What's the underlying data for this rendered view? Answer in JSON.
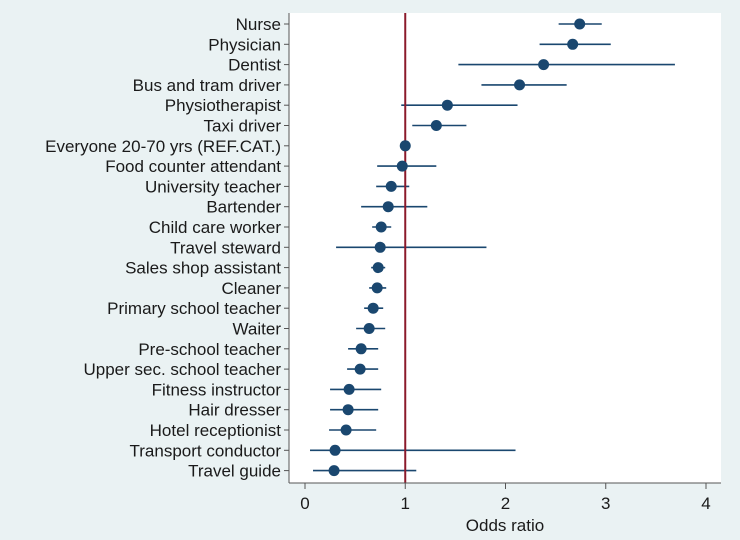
{
  "chart_data": {
    "type": "scatter",
    "subtype": "forest-plot-horizontal",
    "title": "",
    "xlabel": "Odds ratio",
    "ylabel": "",
    "xlim": [
      0,
      4
    ],
    "xticks": [
      0,
      1,
      2,
      3,
      4
    ],
    "xtick_labels": [
      "0",
      "1",
      "2",
      "3",
      "4"
    ],
    "reference_line": {
      "x": 1,
      "color": "#8b1a2b"
    },
    "grid": false,
    "legend": "none",
    "colors": {
      "marker": "#1a476f",
      "ci_line": "#1a476f",
      "background": "#eaf2f3",
      "plot_bg": "#ffffff"
    },
    "rows": [
      {
        "label": "Nurse",
        "or": 2.74,
        "lo": 2.53,
        "hi": 2.96
      },
      {
        "label": "Physician",
        "or": 2.67,
        "lo": 2.34,
        "hi": 3.05
      },
      {
        "label": "Dentist",
        "or": 2.38,
        "lo": 1.53,
        "hi": 3.69
      },
      {
        "label": "Bus and tram driver",
        "or": 2.14,
        "lo": 1.76,
        "hi": 2.61
      },
      {
        "label": "Physiotherapist",
        "or": 1.42,
        "lo": 0.96,
        "hi": 2.12
      },
      {
        "label": "Taxi driver",
        "or": 1.31,
        "lo": 1.07,
        "hi": 1.61
      },
      {
        "label": "Everyone 20-70 yrs (REF.CAT.)",
        "or": 1.0,
        "lo": 1.0,
        "hi": 1.0
      },
      {
        "label": "Food counter attendant",
        "or": 0.97,
        "lo": 0.72,
        "hi": 1.31
      },
      {
        "label": "University teacher",
        "or": 0.86,
        "lo": 0.71,
        "hi": 1.04
      },
      {
        "label": "Bartender",
        "or": 0.83,
        "lo": 0.56,
        "hi": 1.22
      },
      {
        "label": "Child care worker",
        "or": 0.76,
        "lo": 0.67,
        "hi": 0.86
      },
      {
        "label": "Travel steward",
        "or": 0.75,
        "lo": 0.31,
        "hi": 1.81
      },
      {
        "label": "Sales shop assistant",
        "or": 0.73,
        "lo": 0.66,
        "hi": 0.8
      },
      {
        "label": "Cleaner",
        "or": 0.72,
        "lo": 0.64,
        "hi": 0.81
      },
      {
        "label": "Primary school teacher",
        "or": 0.68,
        "lo": 0.59,
        "hi": 0.78
      },
      {
        "label": "Waiter",
        "or": 0.64,
        "lo": 0.51,
        "hi": 0.8
      },
      {
        "label": "Pre-school teacher",
        "or": 0.56,
        "lo": 0.43,
        "hi": 0.73
      },
      {
        "label": "Upper sec. school teacher",
        "or": 0.55,
        "lo": 0.42,
        "hi": 0.73
      },
      {
        "label": "Fitness instructor",
        "or": 0.44,
        "lo": 0.25,
        "hi": 0.76
      },
      {
        "label": "Hair dresser",
        "or": 0.43,
        "lo": 0.25,
        "hi": 0.73
      },
      {
        "label": "Hotel receptionist",
        "or": 0.41,
        "lo": 0.24,
        "hi": 0.71
      },
      {
        "label": "Transport conductor",
        "or": 0.3,
        "lo": 0.05,
        "hi": 2.1
      },
      {
        "label": "Travel guide",
        "or": 0.29,
        "lo": 0.08,
        "hi": 1.11
      }
    ]
  }
}
